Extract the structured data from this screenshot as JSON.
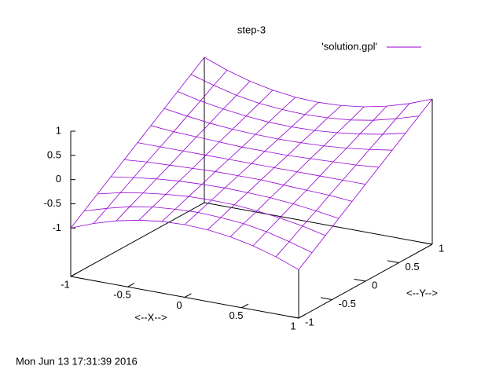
{
  "chart_data": {
    "type": "surface",
    "title": "step-3",
    "xlabel": "<--X-->",
    "ylabel": "<--Y-->",
    "timestamp": "Mon Jun 13 17:31:39 2016",
    "series": [
      {
        "name": "'solution.gpl'",
        "color": "#9400d3"
      }
    ],
    "x": [
      -1,
      -0.8,
      -0.6,
      -0.4,
      -0.2,
      0,
      0.2,
      0.4,
      0.6,
      0.8,
      1
    ],
    "y": [
      -1,
      -0.8,
      -0.6,
      -0.4,
      -0.2,
      0,
      0.2,
      0.4,
      0.6,
      0.8,
      1
    ],
    "z": [
      [
        -1,
        -0.8,
        -0.6,
        -0.4,
        -0.2,
        0,
        0.2,
        0.4,
        0.6,
        0.8,
        1
      ],
      [
        -0.82,
        -0.66,
        -0.49,
        -0.33,
        -0.16,
        0,
        0.16,
        0.33,
        0.49,
        0.66,
        0.82
      ],
      [
        -0.68,
        -0.54,
        -0.41,
        -0.27,
        -0.14,
        0,
        0.14,
        0.27,
        0.41,
        0.54,
        0.68
      ],
      [
        -0.58,
        -0.46,
        -0.35,
        -0.23,
        -0.12,
        0,
        0.12,
        0.23,
        0.35,
        0.46,
        0.58
      ],
      [
        -0.52,
        -0.42,
        -0.31,
        -0.21,
        -0.1,
        0,
        0.1,
        0.21,
        0.31,
        0.42,
        0.52
      ],
      [
        -0.5,
        -0.4,
        -0.3,
        -0.2,
        -0.1,
        0,
        0.1,
        0.2,
        0.3,
        0.4,
        0.5
      ],
      [
        -0.52,
        -0.42,
        -0.31,
        -0.21,
        -0.1,
        0,
        0.1,
        0.21,
        0.31,
        0.42,
        0.52
      ],
      [
        -0.58,
        -0.46,
        -0.35,
        -0.23,
        -0.12,
        0,
        0.12,
        0.23,
        0.35,
        0.46,
        0.58
      ],
      [
        -0.68,
        -0.54,
        -0.41,
        -0.27,
        -0.14,
        0,
        0.14,
        0.27,
        0.41,
        0.54,
        0.68
      ],
      [
        -0.82,
        -0.66,
        -0.49,
        -0.33,
        -0.16,
        0,
        0.16,
        0.33,
        0.49,
        0.66,
        0.82
      ],
      [
        -1,
        -0.8,
        -0.6,
        -0.4,
        -0.2,
        0,
        0.2,
        0.4,
        0.6,
        0.8,
        1
      ]
    ],
    "xlim": [
      -1,
      1
    ],
    "ylim": [
      -1,
      1
    ],
    "zlim": [
      -1,
      1
    ],
    "ticslevel": 0.5,
    "xticks": [
      -1,
      -0.5,
      0,
      0.5,
      1
    ],
    "yticks": [
      -1,
      -0.5,
      0,
      0.5,
      1
    ],
    "zticks": [
      -1,
      -0.5,
      0,
      0.5,
      1
    ],
    "legend": "top-right"
  }
}
